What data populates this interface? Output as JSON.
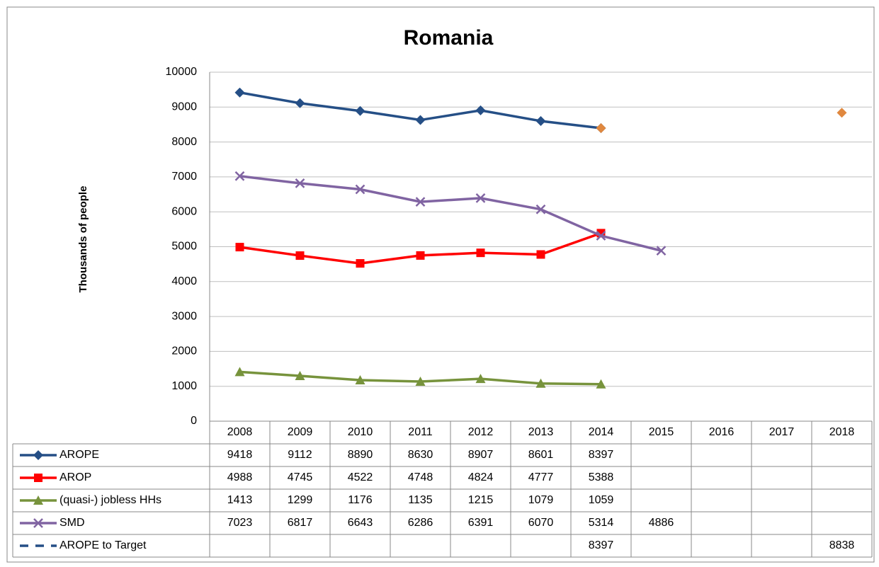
{
  "chart_data": {
    "type": "line",
    "title": "Romania",
    "y_label": "Thousands of people",
    "categories": [
      "2008",
      "2009",
      "2010",
      "2011",
      "2012",
      "2013",
      "2014",
      "2015",
      "2016",
      "2017",
      "2018"
    ],
    "series": [
      {
        "name": "AROPE",
        "color": "#254f86",
        "marker": "diamond",
        "values": [
          9418,
          9112,
          8890,
          8630,
          8907,
          8601,
          8397,
          null,
          null,
          null,
          null
        ]
      },
      {
        "name": "AROP",
        "color": "#ff0000",
        "marker": "square",
        "values": [
          4988,
          4745,
          4522,
          4748,
          4824,
          4777,
          5388,
          null,
          null,
          null,
          null
        ]
      },
      {
        "name": "(quasi-) jobless HHs",
        "color": "#77933c",
        "marker": "triangle",
        "values": [
          1413,
          1299,
          1176,
          1135,
          1215,
          1079,
          1059,
          null,
          null,
          null,
          null
        ]
      },
      {
        "name": "SMD",
        "color": "#8064a2",
        "marker": "x",
        "values": [
          7023,
          6817,
          6643,
          6286,
          6391,
          6070,
          5314,
          4886,
          null,
          null,
          null
        ]
      },
      {
        "name": "AROPE to Target",
        "color": "#254f86",
        "dashed": true,
        "marker": "diamond",
        "marker_color": "#e0883f",
        "values": [
          null,
          null,
          null,
          null,
          null,
          null,
          8397,
          null,
          null,
          null,
          8838
        ]
      }
    ],
    "ylim": [
      0,
      10000
    ],
    "yticks": [
      0,
      1000,
      2000,
      3000,
      4000,
      5000,
      6000,
      7000,
      8000,
      9000,
      10000
    ],
    "grid": true
  }
}
